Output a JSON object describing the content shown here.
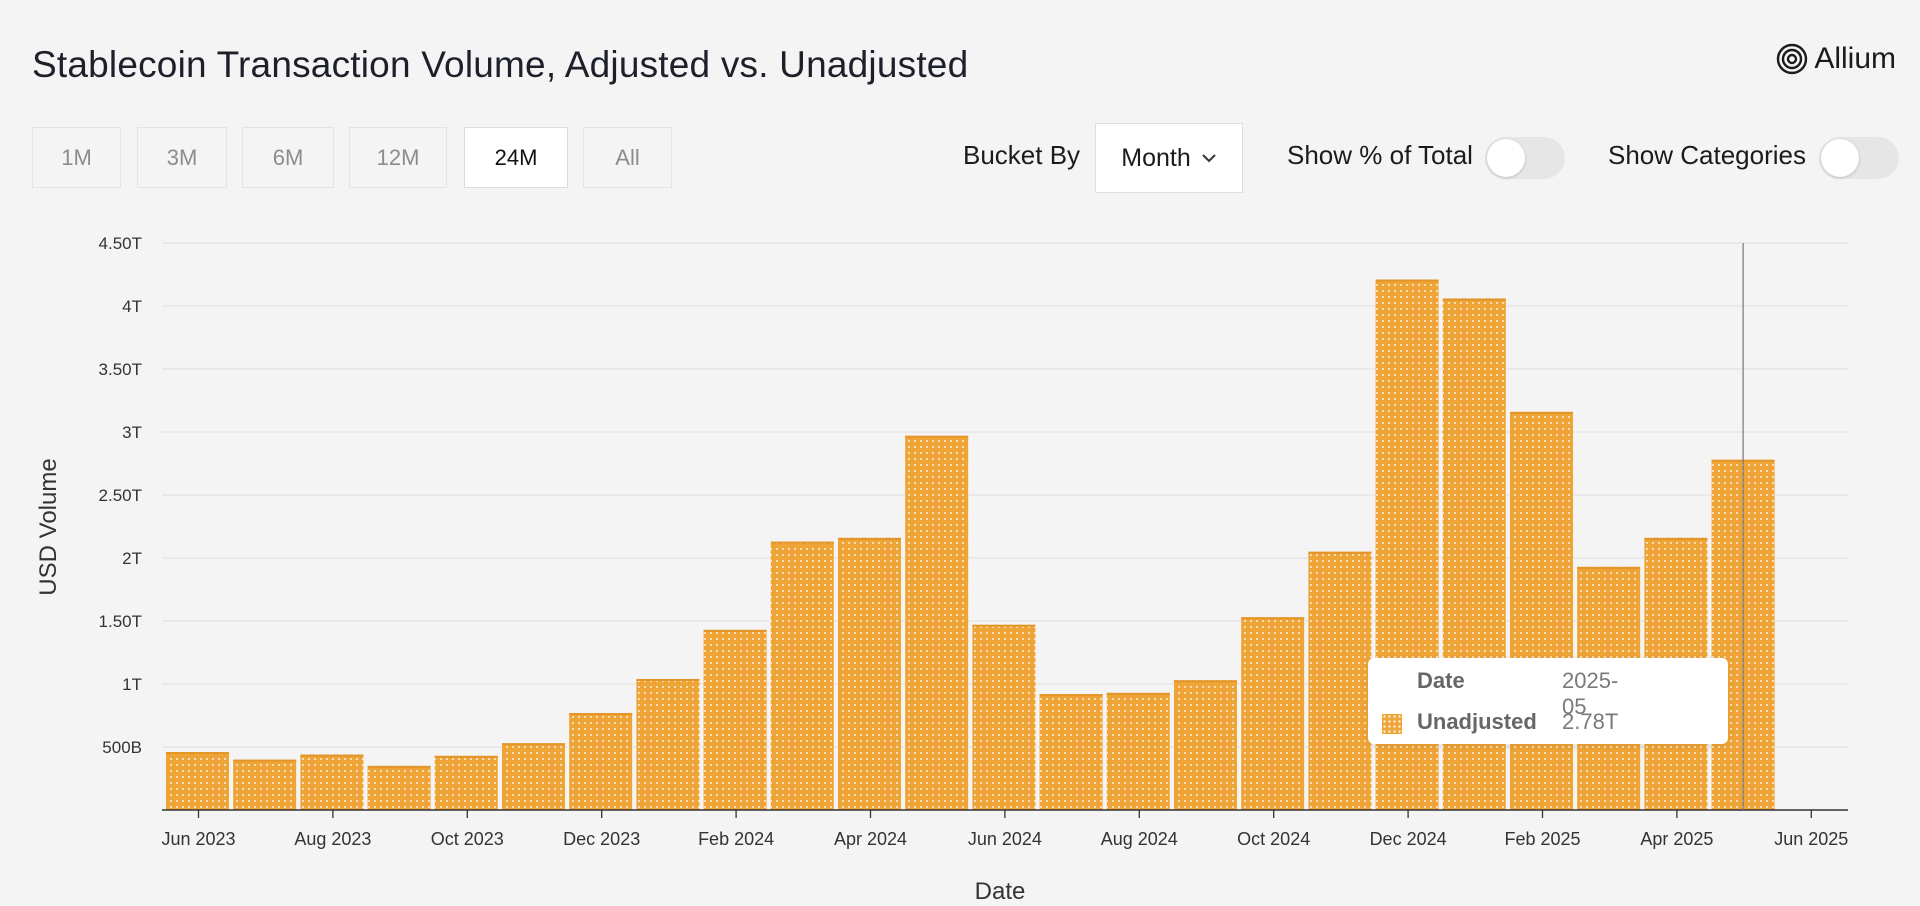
{
  "header": {
    "title": "Stablecoin Transaction Volume, Adjusted vs. Unadjusted",
    "logo_text": "Allium",
    "logo_icon": "concentric-circles-icon"
  },
  "controls": {
    "ranges": [
      "1M",
      "3M",
      "6M",
      "12M",
      "24M",
      "All"
    ],
    "active_range": "24M",
    "bucket_label": "Bucket By",
    "bucket_value": "Month",
    "show_pct_label": "Show % of Total",
    "show_pct_on": false,
    "show_categories_label": "Show Categories",
    "show_categories_on": false
  },
  "tooltip": {
    "date_key": "Date",
    "date_value": "2025-05",
    "series_key": "Unadjusted",
    "series_value": "2.78T"
  },
  "chart_data": {
    "type": "bar",
    "title": "Stablecoin Transaction Volume, Adjusted vs. Unadjusted",
    "xlabel": "Date",
    "ylabel": "USD Volume",
    "ylim": [
      0,
      4.5
    ],
    "y_ticks": [
      0.5,
      1,
      1.5,
      2,
      2.5,
      3,
      3.5,
      4,
      4.5
    ],
    "y_tick_labels": [
      "500B",
      "1T",
      "1.50T",
      "2T",
      "2.50T",
      "3T",
      "3.50T",
      "4T",
      "4.50T"
    ],
    "x_tick_labels": [
      "Jun 2023",
      "Aug 2023",
      "Oct 2023",
      "Dec 2023",
      "Feb 2024",
      "Apr 2024",
      "Jun 2024",
      "Aug 2024",
      "Oct 2024",
      "Dec 2024",
      "Feb 2025",
      "Apr 2025",
      "Jun 2025"
    ],
    "categories": [
      "2023-06",
      "2023-07",
      "2023-08",
      "2023-09",
      "2023-10",
      "2023-11",
      "2023-12",
      "2024-01",
      "2024-02",
      "2024-03",
      "2024-04",
      "2024-05",
      "2024-06",
      "2024-07",
      "2024-08",
      "2024-09",
      "2024-10",
      "2024-11",
      "2024-12",
      "2025-01",
      "2025-02",
      "2025-03",
      "2025-04",
      "2025-05"
    ],
    "series": [
      {
        "name": "Unadjusted",
        "color": "#eea436",
        "values": [
          0.46,
          0.4,
          0.44,
          0.35,
          0.43,
          0.53,
          0.77,
          1.04,
          1.43,
          2.13,
          2.16,
          2.97,
          1.47,
          0.92,
          0.93,
          1.03,
          1.53,
          2.05,
          4.21,
          4.06,
          3.16,
          1.93,
          2.16,
          2.78
        ]
      }
    ],
    "highlight": "2025-05",
    "grid": true,
    "legend": "none"
  }
}
